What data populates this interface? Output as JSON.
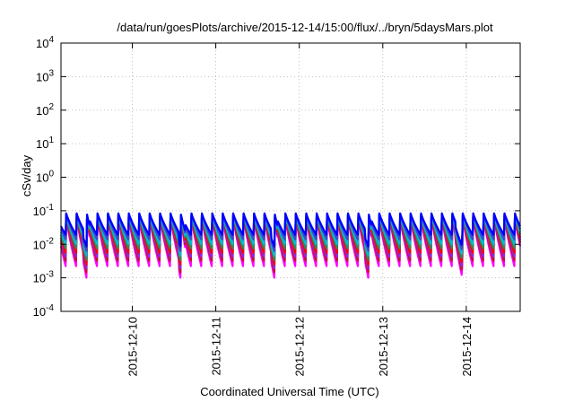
{
  "chart_data": {
    "type": "line",
    "title": "/data/run/goesPlots/archive/2015-12-14/15:00/flux/../bryn/5daysMars.plot",
    "xlabel": "Coordinated Universal Time (UTC)",
    "ylabel": "cSv/day",
    "yscale": "log",
    "ylim": [
      0.0001,
      10000
    ],
    "xlim": [
      "2015-12-09 03:30",
      "2015-12-14 15:30"
    ],
    "grid": true,
    "legend": "none",
    "x_ticks": [
      {
        "date": "2015-12-10",
        "label": "2015-12-10"
      },
      {
        "date": "2015-12-11",
        "label": "2015-12-11"
      },
      {
        "date": "2015-12-12",
        "label": "2015-12-12"
      },
      {
        "date": "2015-12-13",
        "label": "2015-12-13"
      },
      {
        "date": "2015-12-14",
        "label": "2015-12-14"
      }
    ],
    "y_ticks": [
      {
        "value": 0.0001,
        "base": "10",
        "exp": "-4"
      },
      {
        "value": 0.001,
        "base": "10",
        "exp": "-3"
      },
      {
        "value": 0.01,
        "base": "10",
        "exp": "-2"
      },
      {
        "value": 0.1,
        "base": "10",
        "exp": "-1"
      },
      {
        "value": 1,
        "base": "10",
        "exp": "0"
      },
      {
        "value": 10,
        "base": "10",
        "exp": "1"
      },
      {
        "value": 100,
        "base": "10",
        "exp": "2"
      },
      {
        "value": 1000,
        "base": "10",
        "exp": "3"
      },
      {
        "value": 10000,
        "base": "10",
        "exp": "4"
      }
    ],
    "pattern": {
      "sawtooth_period_hours": 3,
      "peak_value": 0.1,
      "gap_starts": [
        "2015-12-09 10:00",
        "2015-12-10 13:30",
        "2015-12-11 16:00",
        "2015-12-12 19:00",
        "2015-12-13 21:00"
      ],
      "gap_hours": 1.7
    },
    "series": [
      {
        "color": "#ff00ff",
        "trough": 0.0022
      },
      {
        "color": "#c0142a",
        "trough": 0.0032
      },
      {
        "color": "#8a2be2",
        "trough": 0.0042
      },
      {
        "color": "#ff0000",
        "trough": 0.0055
      },
      {
        "color": "#2e8b57",
        "trough": 0.0075
      },
      {
        "color": "#00bcd4",
        "trough": 0.01
      },
      {
        "color": "#3f48cc",
        "trough": 0.014
      },
      {
        "color": "#0000ff",
        "trough": 0.019
      }
    ]
  }
}
